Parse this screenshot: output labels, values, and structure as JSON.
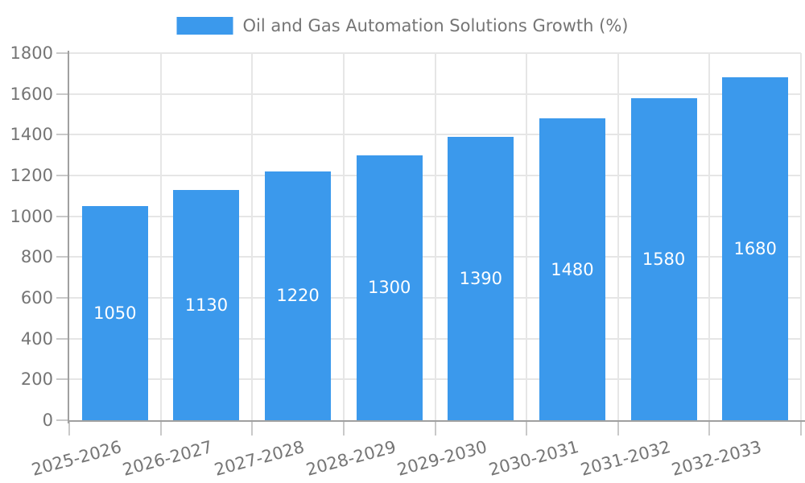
{
  "legend": {
    "label": "Oil and Gas Automation Solutions Growth (%)"
  },
  "chart_data": {
    "type": "bar",
    "series_name": "Oil and Gas Automation Solutions Growth (%)",
    "categories": [
      "2025-2026",
      "2026-2027",
      "2027-2028",
      "2028-2029",
      "2029-2030",
      "2030-2031",
      "2031-2032",
      "2032-2033"
    ],
    "values": [
      1050,
      1130,
      1220,
      1300,
      1390,
      1480,
      1580,
      1680
    ],
    "bar_value_labels": [
      "1050",
      "1130",
      "1220",
      "1300",
      "1390",
      "1480",
      "1580",
      "1680"
    ],
    "title": "",
    "xlabel": "",
    "ylabel": "",
    "ylim": [
      0,
      1800
    ],
    "yticks": [
      0,
      200,
      400,
      600,
      800,
      1000,
      1200,
      1400,
      1600,
      1800
    ],
    "grid": true,
    "legend_position": "top-center",
    "x_tick_rotation_deg": -15,
    "colors": {
      "bar": "#3b99ec",
      "value_label": "#ffffff",
      "tick_label": "#757575",
      "legend_text": "#757575",
      "axis_line": "#a0a0a0",
      "grid_line": "#e6e6e6",
      "tick_mark": "#c9c9c9",
      "background": "#ffffff"
    }
  }
}
